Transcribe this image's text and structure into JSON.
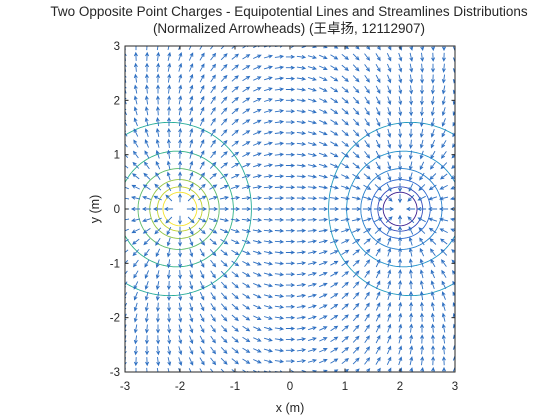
{
  "chart_data": {
    "type": "contour+quiver",
    "title_line1": "Two Opposite Point Charges - Equipotential Lines and Streamlines Distributions",
    "title_line2": "(Normalized Arrowheads) (王卓扬, 12112907)",
    "xlabel": "x (m)",
    "ylabel": "y (m)",
    "xlim": [
      -3,
      3
    ],
    "ylim": [
      -3,
      3
    ],
    "xticks": [
      "-3",
      "-2",
      "-1",
      "0",
      "1",
      "2",
      "3"
    ],
    "yticks": [
      "-3",
      "-2",
      "-1",
      "0",
      "1",
      "2",
      "3"
    ],
    "grid": false,
    "charges": [
      {
        "x": -2,
        "y": 0,
        "sign": "+"
      },
      {
        "x": 2,
        "y": 0,
        "sign": "-"
      }
    ],
    "quiver_grid_step": 0.2,
    "contour_levels": [
      -3,
      -2.2,
      -1.6,
      -1.1,
      -0.7,
      -0.4,
      0,
      0.4,
      0.7,
      1.1,
      1.6,
      2.2,
      3
    ],
    "colors": {
      "arrows": "#2d6fc2",
      "axes": "#262626",
      "colormap": [
        "#3b1d8e",
        "#2f5fd0",
        "#1f96c9",
        "#28b08f",
        "#a8c830",
        "#f5e22a"
      ]
    }
  }
}
